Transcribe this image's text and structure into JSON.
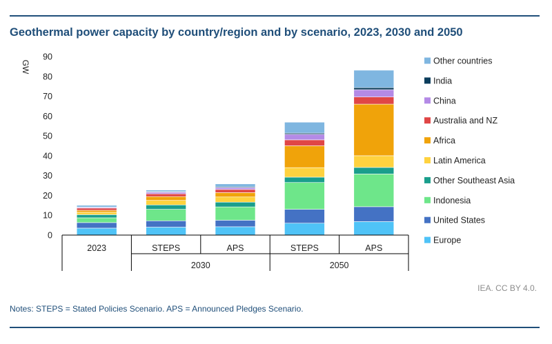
{
  "title": "Geothermal power capacity by country/region and by scenario, 2023, 2030 and 2050",
  "credit": "IEA. CC BY 4.0.",
  "notes": "Notes: STEPS = Stated Policies Scenario. APS = Announced Pledges Scenario.",
  "chart_data": {
    "type": "bar",
    "stacked": true,
    "title": "Geothermal power capacity by country/region and by scenario, 2023, 2030 and 2050",
    "ylabel": "GW",
    "ylim": [
      0,
      90
    ],
    "yticks": [
      0,
      10,
      20,
      30,
      40,
      50,
      60,
      70,
      80,
      90
    ],
    "grid": false,
    "legend": "right",
    "categories": [
      "2023",
      "STEPS",
      "APS",
      "STEPS",
      "APS"
    ],
    "groups": [
      {
        "label": "2030",
        "categories": [
          1,
          2
        ]
      },
      {
        "label": "2050",
        "categories": [
          3,
          4
        ]
      }
    ],
    "series": [
      {
        "name": "Europe",
        "color": "#4fc3f7",
        "values": [
          3.5,
          4.0,
          4.2,
          6.0,
          6.8
        ]
      },
      {
        "name": "United States",
        "color": "#4472c4",
        "values": [
          2.8,
          3.2,
          3.3,
          7.0,
          7.5
        ]
      },
      {
        "name": "Indonesia",
        "color": "#6ee68a",
        "values": [
          2.4,
          5.8,
          6.7,
          13.5,
          16.5
        ]
      },
      {
        "name": "Other Southeast Asia",
        "color": "#1a9e8c",
        "values": [
          1.6,
          2.2,
          2.4,
          2.7,
          3.3
        ]
      },
      {
        "name": "Latin America",
        "color": "#ffd23f",
        "values": [
          1.2,
          2.3,
          2.6,
          4.8,
          5.9
        ]
      },
      {
        "name": "Africa",
        "color": "#f0a30a",
        "values": [
          1.0,
          1.9,
          2.2,
          11.0,
          26.0
        ]
      },
      {
        "name": "Australia and NZ",
        "color": "#e04646",
        "values": [
          1.1,
          1.4,
          1.6,
          3.0,
          3.6
        ]
      },
      {
        "name": "China",
        "color": "#b48ae6",
        "values": [
          0.4,
          0.8,
          0.9,
          2.8,
          3.7
        ]
      },
      {
        "name": "India",
        "color": "#0b3d5c",
        "values": [
          0.1,
          0.3,
          0.4,
          0.6,
          1.0
        ]
      },
      {
        "name": "Other countries",
        "color": "#7fb6e0",
        "values": [
          0.9,
          0.8,
          1.5,
          5.5,
          8.8
        ]
      }
    ]
  }
}
